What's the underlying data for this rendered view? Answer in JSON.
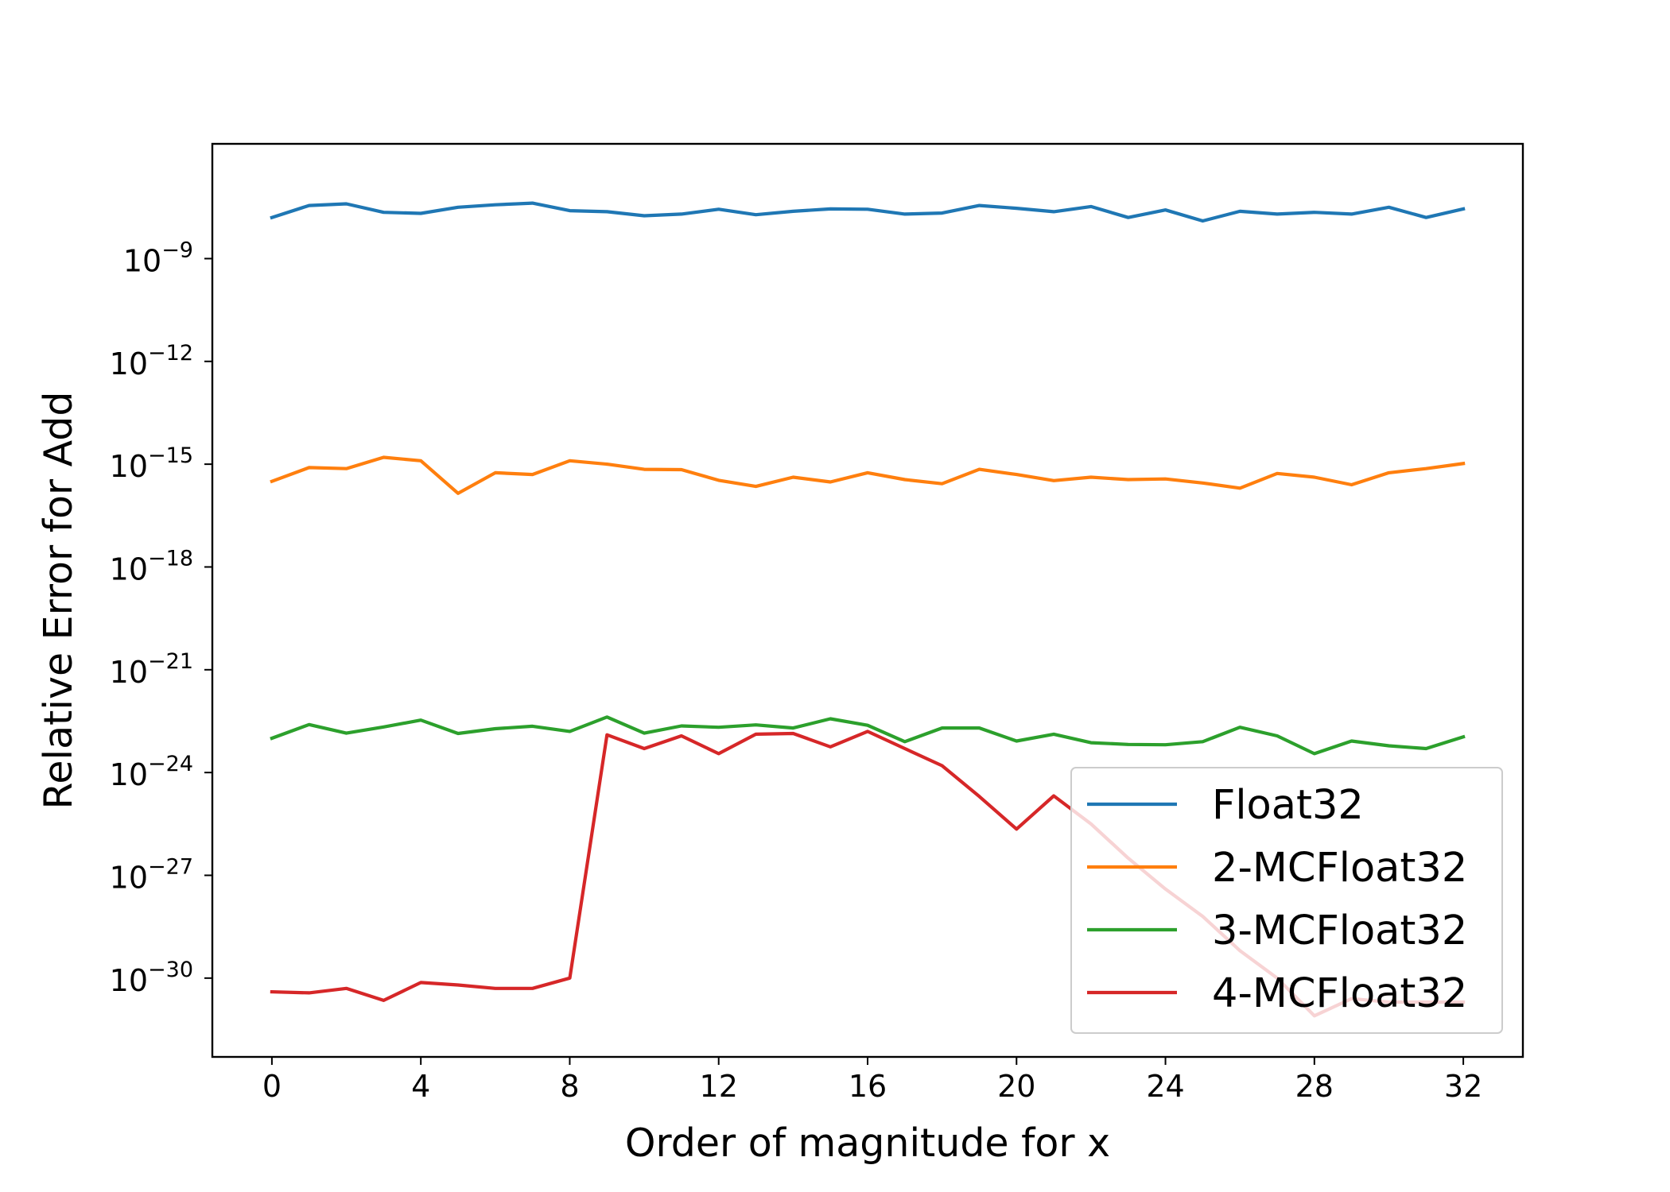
{
  "chart_data": {
    "type": "line",
    "title": "",
    "xlabel": "Order of magnitude for x",
    "ylabel": "Relative Error for Add",
    "x_scale": "linear",
    "y_scale": "log",
    "xlim": [
      -1.6,
      33.6
    ],
    "ylim_exponent": [
      -32.3,
      -5.65
    ],
    "grid": false,
    "legend_position": "lower right",
    "x_ticks": [
      {
        "value": 0,
        "label": "0"
      },
      {
        "value": 4,
        "label": "4"
      },
      {
        "value": 8,
        "label": "8"
      },
      {
        "value": 12,
        "label": "12"
      },
      {
        "value": 16,
        "label": "16"
      },
      {
        "value": 20,
        "label": "20"
      },
      {
        "value": 24,
        "label": "24"
      },
      {
        "value": 28,
        "label": "28"
      },
      {
        "value": 32,
        "label": "32"
      }
    ],
    "y_ticks": [
      {
        "exponent": -9,
        "base": "10",
        "exp_label": "−9"
      },
      {
        "exponent": -12,
        "base": "10",
        "exp_label": "−12"
      },
      {
        "exponent": -15,
        "base": "10",
        "exp_label": "−15"
      },
      {
        "exponent": -18,
        "base": "10",
        "exp_label": "−18"
      },
      {
        "exponent": -21,
        "base": "10",
        "exp_label": "−21"
      },
      {
        "exponent": -24,
        "base": "10",
        "exp_label": "−24"
      },
      {
        "exponent": -27,
        "base": "10",
        "exp_label": "−27"
      },
      {
        "exponent": -30,
        "base": "10",
        "exp_label": "−30"
      }
    ],
    "x": [
      0,
      1,
      2,
      3,
      4,
      5,
      6,
      7,
      8,
      9,
      10,
      11,
      12,
      13,
      14,
      15,
      16,
      17,
      18,
      19,
      20,
      21,
      22,
      23,
      24,
      25,
      26,
      27,
      28,
      29,
      30,
      31,
      32
    ],
    "series": [
      {
        "name": "Float32",
        "color": "#1f77b4",
        "log10_values": [
          -7.8,
          -7.45,
          -7.4,
          -7.65,
          -7.68,
          -7.5,
          -7.43,
          -7.38,
          -7.6,
          -7.63,
          -7.75,
          -7.7,
          -7.56,
          -7.72,
          -7.62,
          -7.55,
          -7.56,
          -7.7,
          -7.67,
          -7.45,
          -7.53,
          -7.63,
          -7.48,
          -7.8,
          -7.58,
          -7.9,
          -7.62,
          -7.7,
          -7.65,
          -7.7,
          -7.5,
          -7.8,
          -7.55
        ]
      },
      {
        "name": "2-MCFloat32",
        "color": "#ff7f0e",
        "log10_values": [
          -15.5,
          -15.1,
          -15.13,
          -14.8,
          -14.9,
          -15.85,
          -15.25,
          -15.3,
          -14.9,
          -15.0,
          -15.15,
          -15.16,
          -15.47,
          -15.65,
          -15.38,
          -15.52,
          -15.25,
          -15.45,
          -15.57,
          -15.15,
          -15.3,
          -15.48,
          -15.38,
          -15.45,
          -15.43,
          -15.55,
          -15.7,
          -15.27,
          -15.38,
          -15.6,
          -15.25,
          -15.13,
          -14.98
        ]
      },
      {
        "name": "3-MCFloat32",
        "color": "#2ca02c",
        "log10_values": [
          -23.0,
          -22.6,
          -22.85,
          -22.67,
          -22.47,
          -22.86,
          -22.72,
          -22.65,
          -22.8,
          -22.38,
          -22.85,
          -22.64,
          -22.68,
          -22.61,
          -22.7,
          -22.43,
          -22.62,
          -23.1,
          -22.7,
          -22.7,
          -23.08,
          -22.88,
          -23.13,
          -23.18,
          -23.19,
          -23.1,
          -22.68,
          -22.93,
          -23.45,
          -23.08,
          -23.22,
          -23.3,
          -22.96
        ]
      },
      {
        "name": "4-MCFloat32",
        "color": "#d62728",
        "log10_values": [
          -30.4,
          -30.43,
          -30.3,
          -30.65,
          -30.13,
          -30.2,
          -30.3,
          -30.3,
          -30.0,
          -22.9,
          -23.3,
          -22.93,
          -23.45,
          -22.88,
          -22.86,
          -23.25,
          -22.8,
          -23.3,
          -23.8,
          -24.7,
          -25.65,
          -24.68,
          -25.5,
          -26.5,
          -27.4,
          -28.2,
          -29.2,
          -30.0,
          -31.1,
          -30.6,
          -30.7,
          -30.7,
          -30.7
        ]
      }
    ]
  }
}
